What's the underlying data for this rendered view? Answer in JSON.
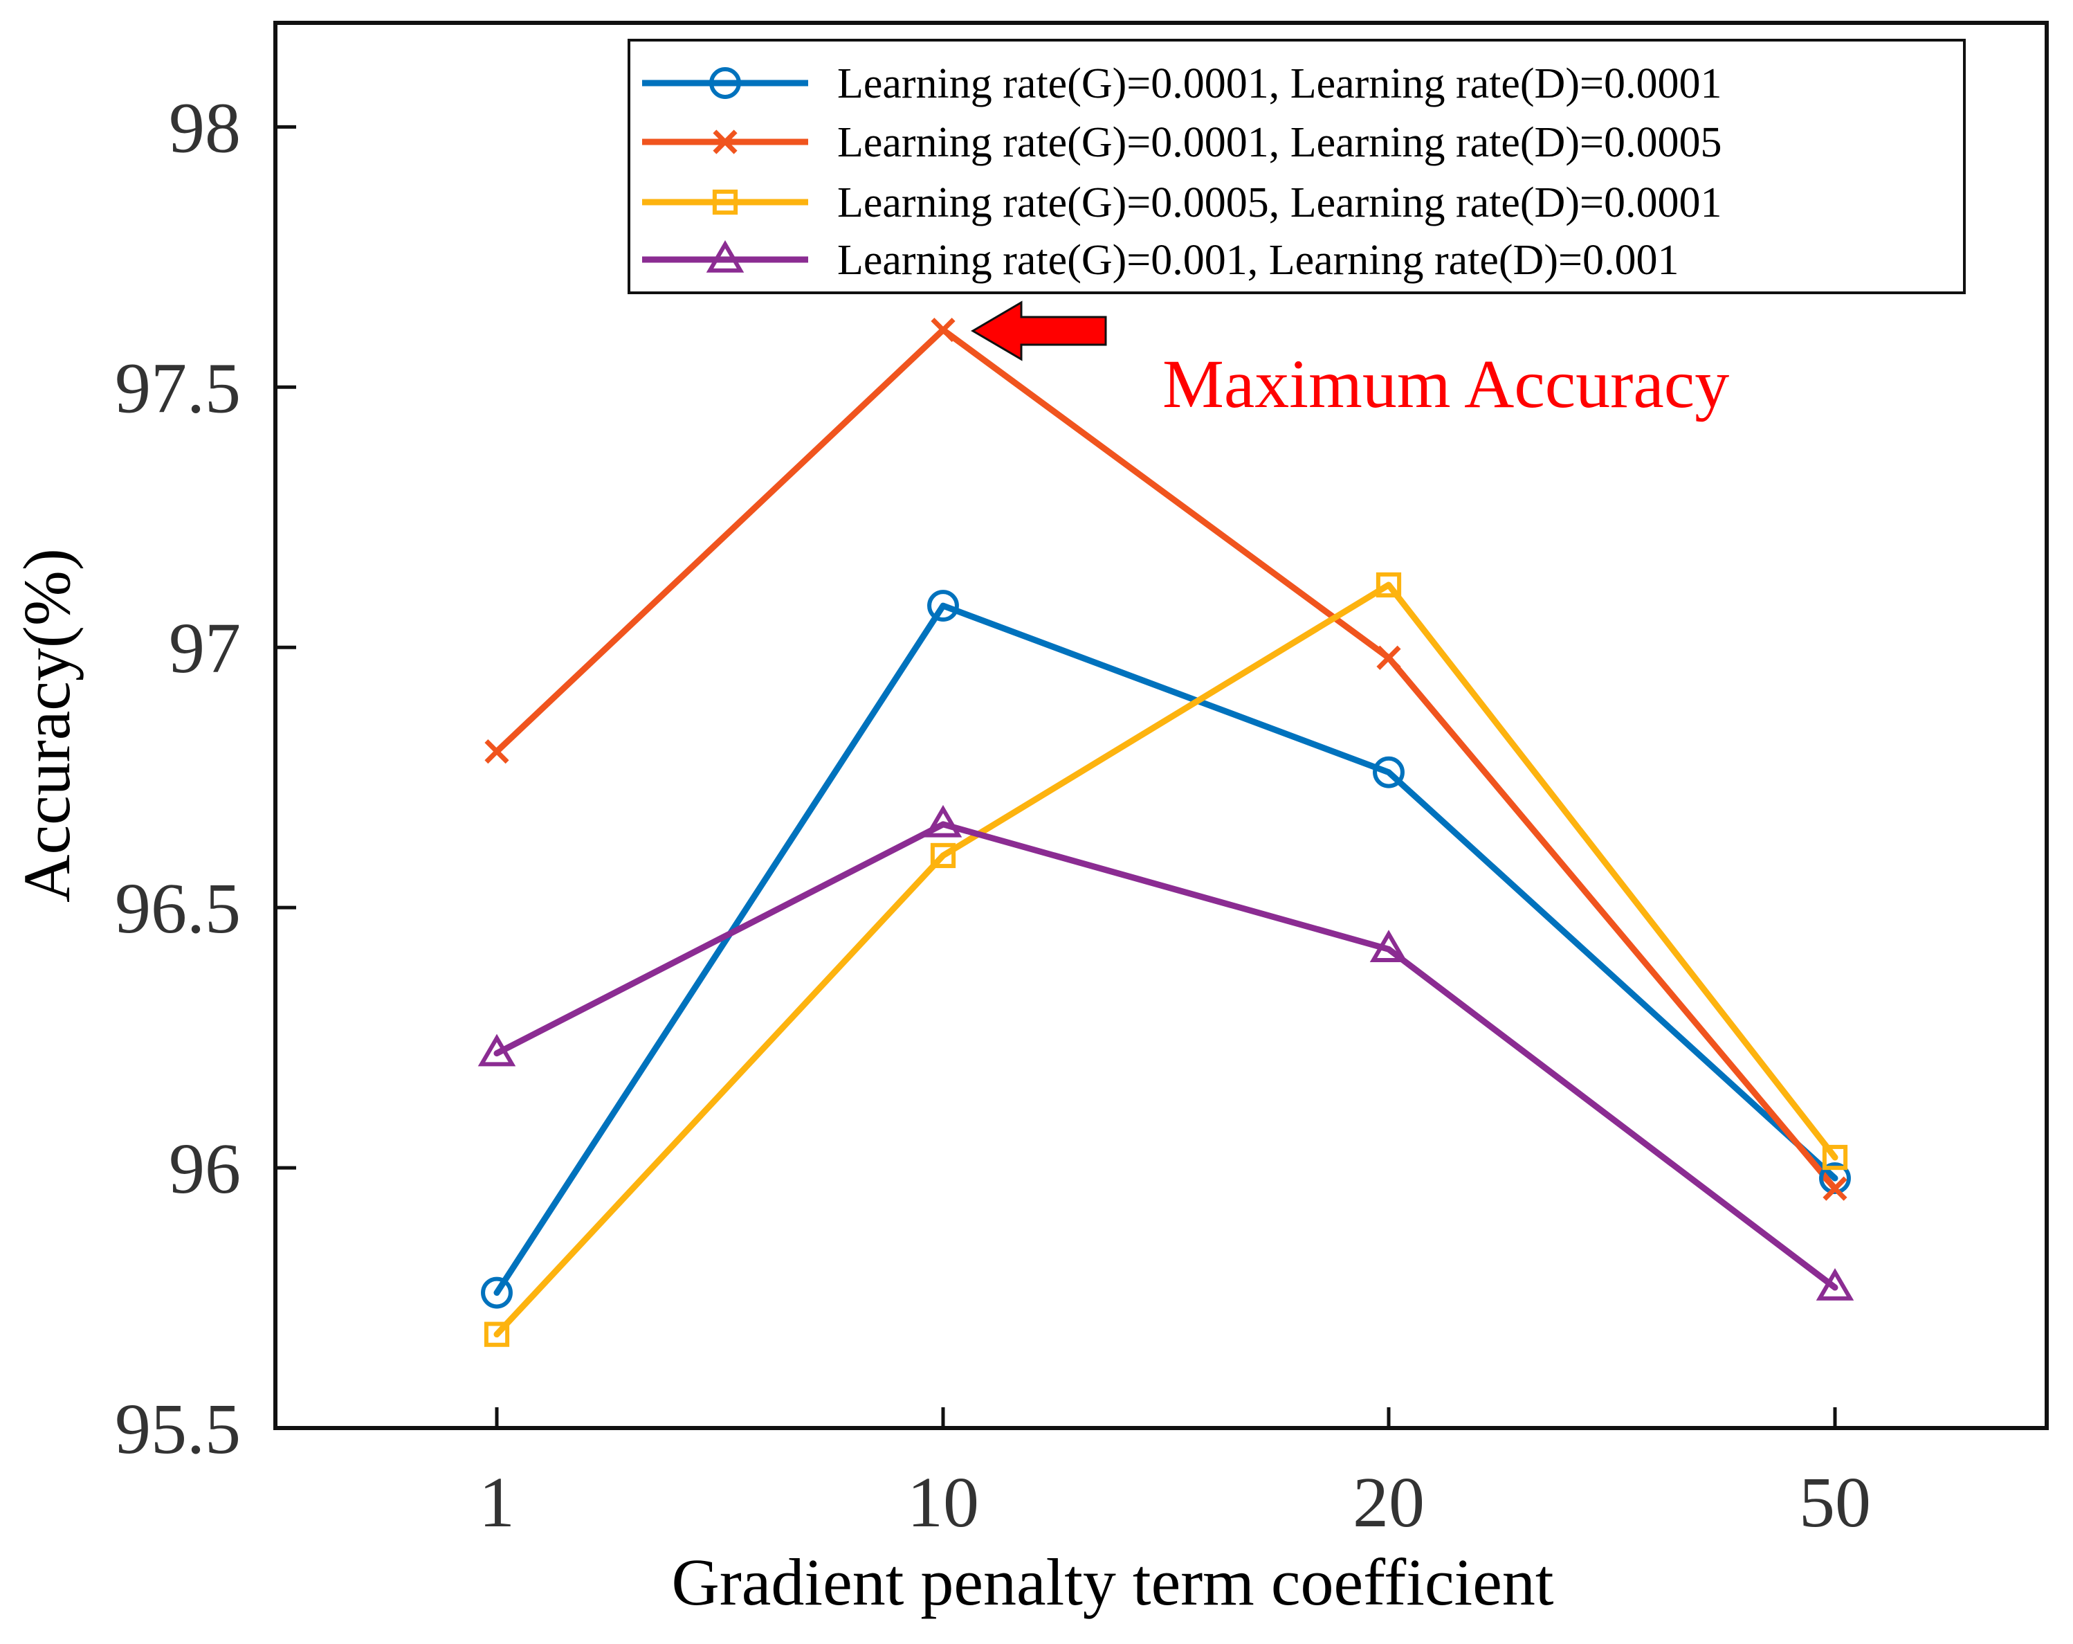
{
  "chart_data": {
    "type": "line",
    "title": "",
    "xlabel": "Gradient penalty term coefficient",
    "ylabel": "Accuracy(%)",
    "categories": [
      "1",
      "10",
      "20",
      "50"
    ],
    "ylim": [
      95.5,
      98.2
    ],
    "yticks": [
      95.5,
      96,
      96.5,
      97,
      97.5,
      98
    ],
    "ytick_labels": [
      "95.5",
      "96",
      "96.5",
      "97",
      "97.5",
      "98"
    ],
    "grid": false,
    "legend_position": "top-right",
    "series": [
      {
        "name": "Learning rate(G)=0.0001, Learning rate(D)=0.0001",
        "values": [
          95.76,
          97.08,
          96.76,
          95.98
        ],
        "color": "#0072BD",
        "marker": "circle"
      },
      {
        "name": "Learning rate(G)=0.0001, Learning rate(D)=0.0005",
        "values": [
          96.8,
          97.61,
          96.98,
          95.96
        ],
        "color": "#F0541E",
        "marker": "x"
      },
      {
        "name": "Learning rate(G)=0.0005, Learning rate(D)=0.0001",
        "values": [
          95.68,
          96.6,
          97.12,
          96.02
        ],
        "color": "#FDB30F",
        "marker": "square"
      },
      {
        "name": "Learning rate(G)=0.001, Learning rate(D)=0.001",
        "values": [
          96.22,
          96.66,
          96.42,
          95.77
        ],
        "color": "#8B2C92",
        "marker": "triangle"
      }
    ],
    "annotation": {
      "text": "Maximum Accuracy",
      "color": "#FF0000",
      "series_index": 1,
      "point_index": 1
    }
  }
}
